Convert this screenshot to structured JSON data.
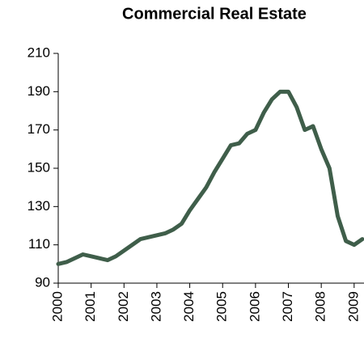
{
  "chart_data": {
    "type": "line",
    "title": "Commercial Real Estate",
    "x": [
      2000,
      2000.25,
      2000.5,
      2000.75,
      2001,
      2001.25,
      2001.5,
      2001.75,
      2002,
      2002.25,
      2002.5,
      2002.75,
      2003,
      2003.25,
      2003.5,
      2003.75,
      2004,
      2004.25,
      2004.5,
      2004.75,
      2005,
      2005.25,
      2005.5,
      2005.75,
      2006,
      2006.25,
      2006.5,
      2006.75,
      2007,
      2007.25,
      2007.5,
      2007.75,
      2008,
      2008.25,
      2008.5,
      2008.75,
      2009,
      2009.25
    ],
    "values": [
      100,
      101,
      103,
      105,
      104,
      103,
      102,
      104,
      107,
      110,
      113,
      114,
      115,
      116,
      118,
      121,
      128,
      134,
      140,
      148,
      155,
      162,
      163,
      168,
      170,
      179,
      186,
      190,
      190,
      182,
      170,
      172,
      160,
      150,
      125,
      112,
      110,
      113
    ],
    "color": "#3f5e4a",
    "xlim": [
      2000,
      2009.3
    ],
    "xticks": [
      2000,
      2001,
      2002,
      2003,
      2004,
      2005,
      2006,
      2007,
      2008,
      2009
    ],
    "ylim": [
      90,
      210
    ],
    "yticks": [
      90,
      110,
      130,
      150,
      170,
      190,
      210
    ]
  }
}
